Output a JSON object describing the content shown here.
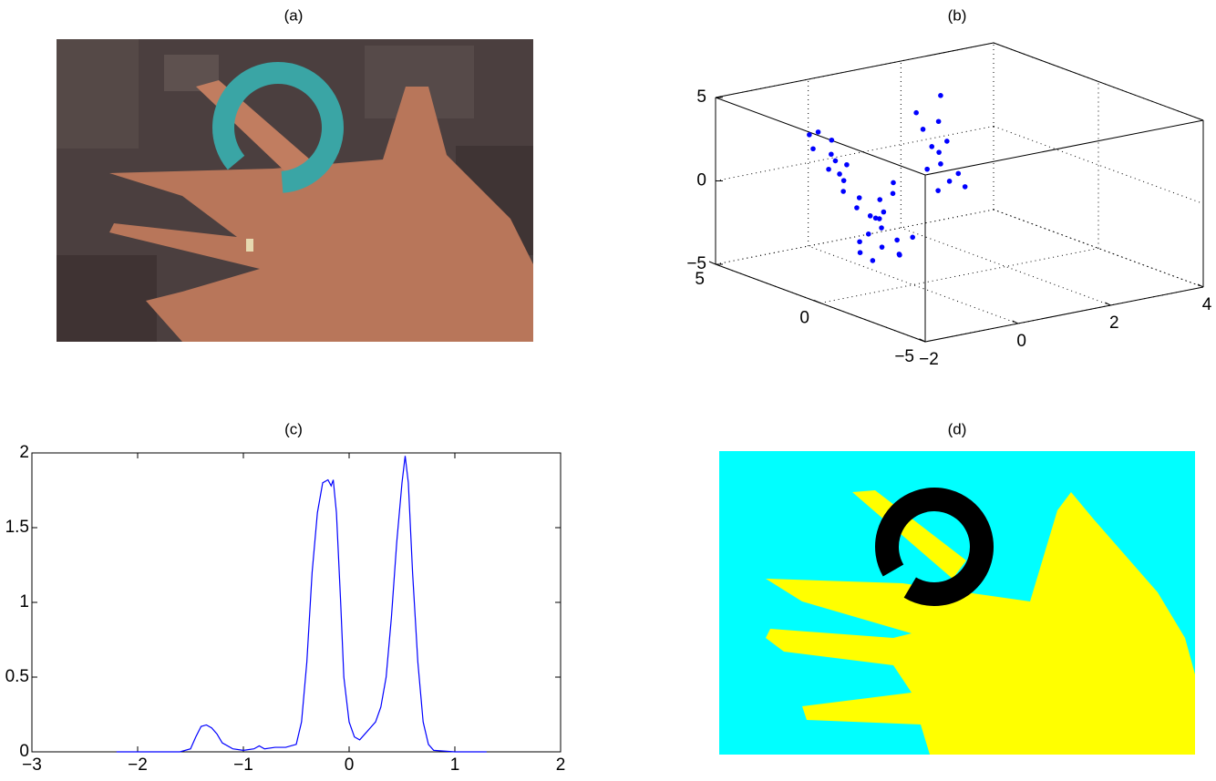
{
  "chart_data": [
    {
      "type": "image",
      "title": "(a)"
    },
    {
      "type": "scatter3d",
      "title": "(b)",
      "x": [
        -0.6,
        -0.4,
        -0.5,
        -0.7,
        -0.3,
        -0.5,
        -0.6,
        -0.4,
        -0.5,
        -0.2,
        -0.8,
        -0.5,
        -0.3,
        -0.6,
        -0.5,
        -0.3,
        -0.6,
        -0.4,
        -0.2,
        -0.5,
        -0.7,
        -0.3,
        -0.4,
        -0.1,
        -0.6,
        -0.2,
        -0.5,
        -0.4,
        -0.3,
        -0.6,
        1.5,
        1.4,
        1.6,
        1.3,
        1.7,
        1.5,
        1.4,
        1.6,
        1.5,
        1.2,
        1.8,
        1.5,
        1.3
      ],
      "y": [
        3.2,
        3.0,
        2.8,
        3.4,
        2.5,
        2.2,
        2.0,
        1.8,
        2.6,
        1.6,
        3.0,
        2.4,
        1.9,
        2.7,
        0.5,
        0.3,
        0.8,
        0.6,
        0.2,
        0.4,
        1.0,
        0.0,
        0.7,
        -0.2,
        1.2,
        0.5,
        0.3,
        0.9,
        0.1,
        0.6,
        2.0,
        2.2,
        1.8,
        2.4,
        1.6,
        2.1,
        1.9,
        2.3,
        1.7,
        2.5,
        1.5,
        2.0,
        2.2
      ],
      "z": [
        3.0,
        2.5,
        1.8,
        2.8,
        1.2,
        0.5,
        0.0,
        -1.0,
        1.5,
        -1.5,
        2.2,
        0.8,
        -0.5,
        1.0,
        -1.0,
        0.5,
        -2.0,
        -2.8,
        -3.2,
        -1.5,
        -2.5,
        -3.0,
        0.0,
        -2.0,
        -3.3,
        1.0,
        -0.5,
        -1.2,
        -2.2,
        -3.5,
        0.5,
        1.5,
        -0.5,
        2.5,
        0.0,
        3.0,
        -1.0,
        1.0,
        2.0,
        3.5,
        -0.8,
        4.6,
        0.2
      ],
      "color": "#0000ff",
      "xlim": [
        -2,
        4
      ],
      "xticks": [
        {
          "value": -2,
          "label": "−2"
        },
        0,
        2,
        4
      ],
      "ylim": [
        -5,
        5
      ],
      "yticks": [
        {
          "value": -5,
          "label": "−5"
        },
        0,
        5
      ],
      "zlim": [
        -5,
        5
      ],
      "zticks": [
        {
          "value": -5,
          "label": "−5"
        },
        0,
        5
      ],
      "grid": true
    },
    {
      "type": "line",
      "title": "(c)",
      "x": [
        -2.2,
        -1.9,
        -1.6,
        -1.5,
        -1.45,
        -1.4,
        -1.35,
        -1.3,
        -1.25,
        -1.2,
        -1.1,
        -1.0,
        -0.9,
        -0.85,
        -0.8,
        -0.7,
        -0.6,
        -0.5,
        -0.45,
        -0.4,
        -0.35,
        -0.3,
        -0.25,
        -0.2,
        -0.17,
        -0.15,
        -0.12,
        -0.08,
        -0.05,
        0.0,
        0.05,
        0.1,
        0.15,
        0.2,
        0.25,
        0.3,
        0.35,
        0.4,
        0.45,
        0.5,
        0.53,
        0.56,
        0.6,
        0.65,
        0.7,
        0.75,
        0.8,
        1.0,
        1.3
      ],
      "values": [
        0,
        0,
        0,
        0.02,
        0.1,
        0.17,
        0.18,
        0.16,
        0.12,
        0.06,
        0.02,
        0.01,
        0.02,
        0.04,
        0.02,
        0.03,
        0.03,
        0.05,
        0.2,
        0.6,
        1.2,
        1.6,
        1.8,
        1.82,
        1.78,
        1.82,
        1.6,
        1.0,
        0.5,
        0.2,
        0.1,
        0.08,
        0.12,
        0.16,
        0.2,
        0.3,
        0.5,
        0.9,
        1.4,
        1.8,
        1.98,
        1.8,
        1.2,
        0.6,
        0.2,
        0.05,
        0.01,
        0,
        0
      ],
      "color": "#0000ff",
      "xlim": [
        -3,
        2
      ],
      "xticks": [
        {
          "value": -3,
          "label": "−3"
        },
        {
          "value": -2,
          "label": "−2"
        },
        {
          "value": -1,
          "label": "−1"
        },
        0,
        1,
        2
      ],
      "ylim": [
        0,
        2
      ],
      "yticks": [
        0,
        0.5,
        1,
        1.5,
        2
      ]
    },
    {
      "type": "image",
      "title": "(d)"
    }
  ]
}
